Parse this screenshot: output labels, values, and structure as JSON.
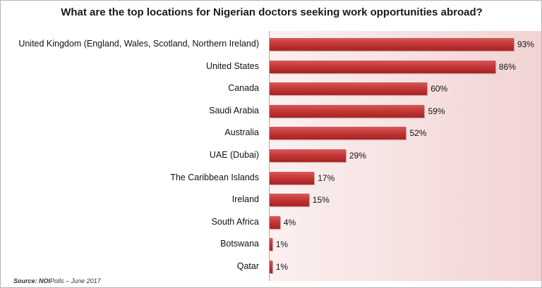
{
  "chart_data": {
    "type": "bar",
    "orientation": "horizontal",
    "title": "What are the top locations for Nigerian doctors seeking work opportunities abroad?",
    "categories": [
      "United Kingdom (England, Wales, Scotland, Northern Ireland)",
      "United States",
      "Canada",
      "Saudi Arabia",
      "Australia",
      "UAE (Dubai)",
      "The Caribbean Islands",
      "Ireland",
      "South Africa",
      "Botswana",
      "Qatar"
    ],
    "values": [
      93,
      86,
      60,
      59,
      52,
      29,
      17,
      15,
      4,
      1,
      1
    ],
    "value_labels": [
      "93%",
      "86%",
      "60%",
      "59%",
      "52%",
      "29%",
      "17%",
      "15%",
      "4%",
      "1%",
      "1%"
    ],
    "xlim": [
      0,
      100
    ],
    "grid": false,
    "bar_color": "#c43838"
  },
  "source": {
    "label": "Source:",
    "org_bold": "NOI",
    "text": "Polls – June  2017"
  }
}
